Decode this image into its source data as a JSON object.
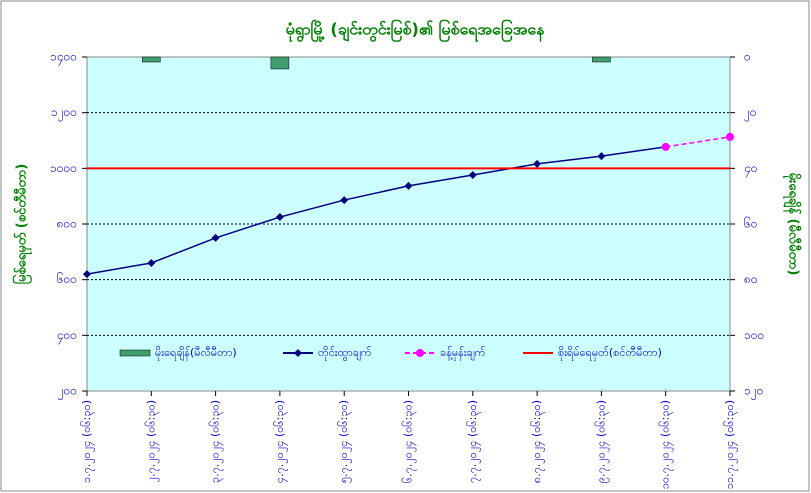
{
  "chart_data": {
    "type": "line",
    "title": "မုံရွာမြို့ (ချင်းတွင်းမြစ်)၏ မြစ်ရေအခြေအနေ",
    "y_label": "မြစ်ရေမှတ် (စင်တီမီတာ)",
    "y2_label": "မိုးရေချိန် (မီလီမီတာ)",
    "categories": [
      "၁.၇.၂၀၂၄ (၀၆:၃၀)",
      "၂.၇.၂၀၂၄ (၀၆:၃၀)",
      "၃.၇.၂၀၂၄ (၀၆:၃၀)",
      "၄.၇.၂၀၂၄ (၀၆:၃၀)",
      "၅.၇.၂၀၂၄ (၀၆:၃၀)",
      "၆.၇.၂၀၂၄ (၀၆:၃၀)",
      "၇.၇.၂၀၂၄ (၀၆:၃၀)",
      "၈.၇.၂၀၂၄ (၀၆:၃၀)",
      "၉.၇.၂၀၂၄ (၀၆:၃၀)",
      "၁၀.၇.၂၀၂၄ (၀၆:၃၀)",
      "၁၁.၇.၂၀၂၄ (၀၆:၃၀)"
    ],
    "series": [
      {
        "name": "မိုးရေချိန်(မီလီမီတာ)",
        "type": "bar",
        "axis": "y2",
        "color": "#3f9f6f",
        "values": [
          null,
          1.8,
          null,
          4.3,
          null,
          null,
          null,
          null,
          1.8,
          null,
          null
        ]
      },
      {
        "name": "တိုင်းထွာချက်",
        "type": "line",
        "color": "#000080",
        "values": [
          620,
          660,
          750,
          825,
          886,
          937,
          976,
          1016,
          1044,
          1077,
          null
        ]
      },
      {
        "name": "ခန့်မှန်းချက်",
        "type": "line",
        "dashed": true,
        "color": "#ff00ff",
        "values": [
          null,
          null,
          null,
          null,
          null,
          null,
          null,
          null,
          null,
          1077,
          1113
        ]
      },
      {
        "name": "စိုးရိမ်ရေမှတ်(စင်တီမီတာ)",
        "type": "line",
        "plain": true,
        "color": "#ff0000",
        "values": [
          1000,
          1000,
          1000,
          1000,
          1000,
          1000,
          1000,
          1000,
          1000,
          1000,
          1000
        ]
      }
    ],
    "ylim": [
      200,
      1400
    ],
    "yticks": [
      {
        "value": 200,
        "label": "၂၀၀"
      },
      {
        "value": 400,
        "label": "၄၀၀"
      },
      {
        "value": 600,
        "label": "၆၀၀"
      },
      {
        "value": 800,
        "label": "၈၀၀"
      },
      {
        "value": 1000,
        "label": "၁၀၀၀"
      },
      {
        "value": 1200,
        "label": "၁၂၀၀"
      },
      {
        "value": 1400,
        "label": "၁၄၀၀"
      }
    ],
    "y2lim": [
      120,
      0
    ],
    "y2ticks": [
      {
        "value": 0,
        "label": "၀"
      },
      {
        "value": 20,
        "label": "၂၀"
      },
      {
        "value": 40,
        "label": "၄၀"
      },
      {
        "value": 60,
        "label": "၆၀"
      },
      {
        "value": 80,
        "label": "၈၀"
      },
      {
        "value": 100,
        "label": "၁၀၀"
      },
      {
        "value": 120,
        "label": "၁၂၀"
      }
    ],
    "grid": true
  }
}
